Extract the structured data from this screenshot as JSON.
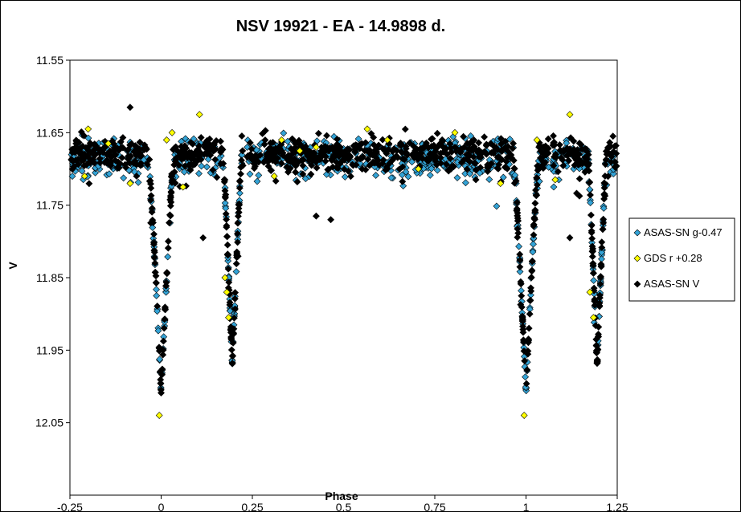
{
  "chart_data": {
    "type": "scatter",
    "title": "NSV 19921 - EA - 14.9898 d.",
    "xlabel": "Phase",
    "ylabel": "V",
    "xlim": [
      -0.25,
      1.25
    ],
    "ylim": [
      11.55,
      12.15
    ],
    "y_inverted": true,
    "x_ticks": [
      -0.25,
      0,
      0.25,
      0.5,
      0.75,
      1,
      1.25
    ],
    "x_tick_labels": [
      "-0.25",
      "0",
      "0.25",
      "0.5",
      "0.75",
      "1",
      "1.25"
    ],
    "y_ticks": [
      11.55,
      11.65,
      11.75,
      11.85,
      11.95,
      12.05
    ],
    "y_tick_labels": [
      "11.55",
      "11.65",
      "11.75",
      "11.85",
      "11.95",
      "12.05"
    ],
    "grid": false,
    "legend_position": "right",
    "eclipses": {
      "primary": {
        "phase": 0.0,
        "depth_mag": 12.01,
        "half_width": 0.035
      },
      "secondary": {
        "phase": 0.195,
        "depth_mag": 11.97,
        "half_width": 0.025
      }
    },
    "series": [
      {
        "name": "ASAS-SN g-0.47",
        "color": "#33a3d6",
        "marker": "diamond",
        "baseline": 11.685,
        "scatter": 0.025
      },
      {
        "name": "GDS r +0.28",
        "color": "#ffff00",
        "marker": "diamond",
        "baseline": 11.68,
        "scatter": 0.02,
        "points": [
          [
            -0.21,
            11.71
          ],
          [
            -0.2,
            11.645
          ],
          [
            -0.145,
            11.665
          ],
          [
            -0.085,
            11.72
          ],
          [
            -0.005,
            12.04
          ],
          [
            0.015,
            11.66
          ],
          [
            0.03,
            11.65
          ],
          [
            0.06,
            11.725
          ],
          [
            0.105,
            11.625
          ],
          [
            0.175,
            11.85
          ],
          [
            0.18,
            11.87
          ],
          [
            0.185,
            11.905
          ],
          [
            0.31,
            11.71
          ],
          [
            0.33,
            11.66
          ],
          [
            0.38,
            11.675
          ],
          [
            0.425,
            11.67
          ],
          [
            0.565,
            11.645
          ],
          [
            0.62,
            11.66
          ],
          [
            0.705,
            11.7
          ],
          [
            0.805,
            11.65
          ],
          [
            0.93,
            11.72
          ],
          [
            0.995,
            12.04
          ],
          [
            1.03,
            11.66
          ],
          [
            1.08,
            11.715
          ],
          [
            1.12,
            11.625
          ],
          [
            1.175,
            11.87
          ],
          [
            1.185,
            11.905
          ]
        ]
      },
      {
        "name": "ASAS-SN V",
        "color": "#000000",
        "marker": "diamond",
        "baseline": 11.68,
        "scatter": 0.022,
        "outliers": [
          [
            -0.085,
            11.615
          ],
          [
            0.115,
            11.795
          ],
          [
            0.345,
            11.685
          ],
          [
            0.425,
            11.765
          ],
          [
            0.465,
            11.77
          ],
          [
            1.12,
            11.795
          ],
          [
            0.55,
            11.665
          ]
        ]
      }
    ]
  }
}
